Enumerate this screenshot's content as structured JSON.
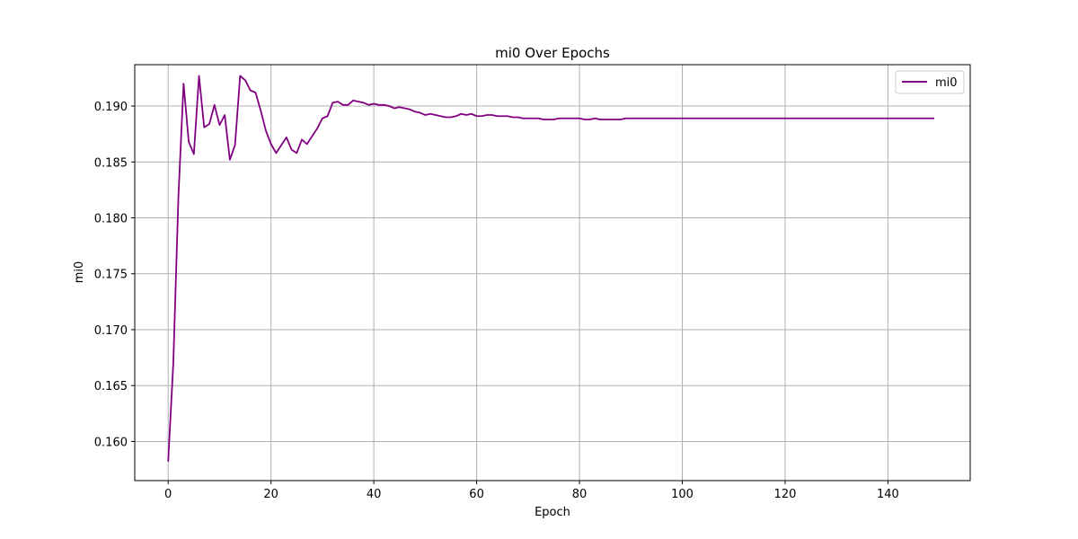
{
  "chart_data": {
    "type": "line",
    "title": "mi0 Over Epochs",
    "xlabel": "Epoch",
    "ylabel": "mi0",
    "xlim": [
      -6.5,
      156
    ],
    "ylim": [
      0.1565,
      0.1937
    ],
    "xticks": [
      0,
      20,
      40,
      60,
      80,
      100,
      120,
      140
    ],
    "yticks": [
      0.16,
      0.165,
      0.17,
      0.175,
      0.18,
      0.185,
      0.19
    ],
    "ytick_format": 3,
    "grid": true,
    "legend_position": "top-right",
    "series": [
      {
        "name": "mi0",
        "color": "#800080",
        "x": [
          0,
          1,
          2,
          3,
          4,
          5,
          6,
          7,
          8,
          9,
          10,
          11,
          12,
          13,
          14,
          15,
          16,
          17,
          18,
          19,
          20,
          21,
          22,
          23,
          24,
          25,
          26,
          27,
          28,
          29,
          30,
          31,
          32,
          33,
          34,
          35,
          36,
          37,
          38,
          39,
          40,
          41,
          42,
          43,
          44,
          45,
          46,
          47,
          48,
          49,
          50,
          51,
          52,
          53,
          54,
          55,
          56,
          57,
          58,
          59,
          60,
          61,
          62,
          63,
          64,
          65,
          66,
          67,
          68,
          69,
          70,
          71,
          72,
          73,
          74,
          75,
          76,
          77,
          78,
          79,
          80,
          81,
          82,
          83,
          84,
          85,
          86,
          87,
          88,
          89,
          90,
          91,
          92,
          93,
          94,
          95,
          96,
          97,
          98,
          99,
          100,
          101,
          102,
          103,
          104,
          105,
          106,
          107,
          108,
          109,
          110,
          111,
          112,
          113,
          114,
          115,
          116,
          117,
          118,
          119,
          120,
          121,
          122,
          123,
          124,
          125,
          126,
          127,
          128,
          129,
          130,
          131,
          132,
          133,
          134,
          135,
          136,
          137,
          138,
          139,
          140,
          141,
          142,
          143,
          144,
          145,
          146,
          147,
          148,
          149
        ],
        "values": [
          0.1582,
          0.167,
          0.182,
          0.192,
          0.1868,
          0.1857,
          0.1927,
          0.1881,
          0.1884,
          0.1901,
          0.1883,
          0.1892,
          0.1852,
          0.1865,
          0.1927,
          0.1923,
          0.1914,
          0.1912,
          0.1896,
          0.1878,
          0.1866,
          0.1858,
          0.1865,
          0.1872,
          0.1861,
          0.1858,
          0.187,
          0.1866,
          0.1873,
          0.188,
          0.1889,
          0.1891,
          0.1903,
          0.1904,
          0.1901,
          0.1901,
          0.1905,
          0.1904,
          0.1903,
          0.1901,
          0.1902,
          0.1901,
          0.1901,
          0.19,
          0.1898,
          0.1899,
          0.1898,
          0.1897,
          0.1895,
          0.1894,
          0.1892,
          0.1893,
          0.1892,
          0.1891,
          0.189,
          0.189,
          0.1891,
          0.1893,
          0.1892,
          0.1893,
          0.1891,
          0.1891,
          0.1892,
          0.1892,
          0.1891,
          0.1891,
          0.1891,
          0.189,
          0.189,
          0.1889,
          0.1889,
          0.1889,
          0.1889,
          0.1888,
          0.1888,
          0.1888,
          0.1889,
          0.1889,
          0.1889,
          0.1889,
          0.1889,
          0.1888,
          0.1888,
          0.1889,
          0.1888,
          0.1888,
          0.1888,
          0.1888,
          0.1888,
          0.1889,
          0.1889,
          0.1889,
          0.1889,
          0.1889,
          0.1889,
          0.1889,
          0.1889,
          0.1889,
          0.1889,
          0.1889,
          0.1889,
          0.1889,
          0.1889,
          0.1889,
          0.1889,
          0.1889,
          0.1889,
          0.1889,
          0.1889,
          0.1889,
          0.1889,
          0.1889,
          0.1889,
          0.1889,
          0.1889,
          0.1889,
          0.1889,
          0.1889,
          0.1889,
          0.1889,
          0.1889,
          0.1889,
          0.1889,
          0.1889,
          0.1889,
          0.1889,
          0.1889,
          0.1889,
          0.1889,
          0.1889,
          0.1889,
          0.1889,
          0.1889,
          0.1889,
          0.1889,
          0.1889,
          0.1889,
          0.1889,
          0.1889,
          0.1889,
          0.1889,
          0.1889,
          0.1889,
          0.1889,
          0.1889,
          0.1889,
          0.1889,
          0.1889,
          0.1889,
          0.1889
        ]
      }
    ]
  }
}
